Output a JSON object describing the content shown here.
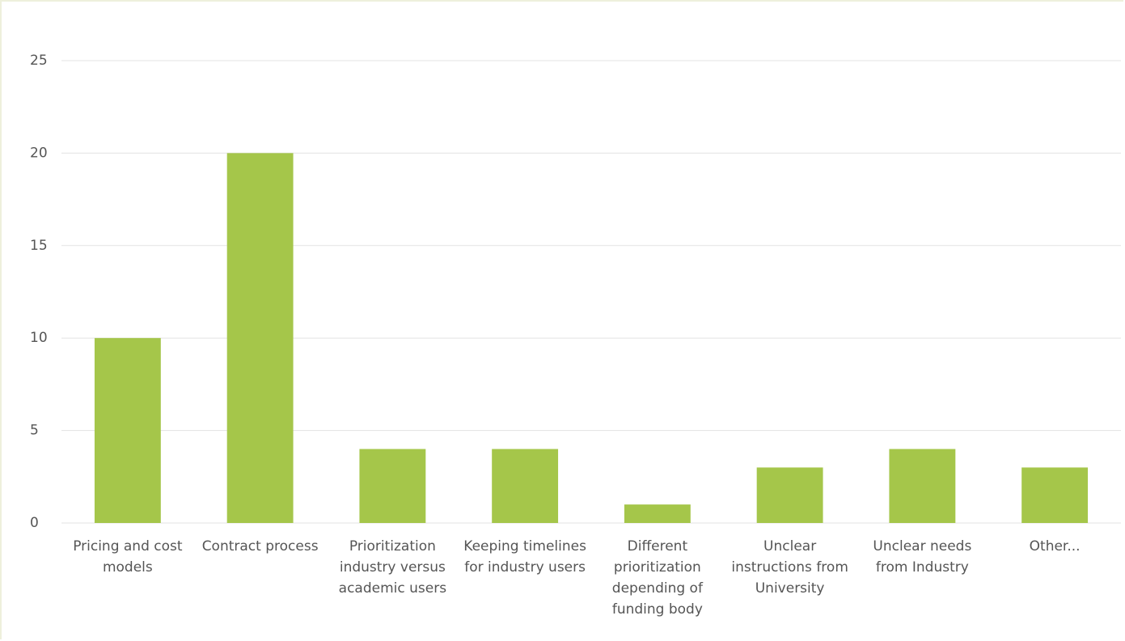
{
  "chart_data": {
    "type": "bar",
    "categories": [
      "Pricing and cost models",
      "Contract process",
      "Prioritization industry versus academic users",
      "Keeping timelines for industry users",
      "Different prioritization depending of funding body",
      "Unclear instructions from University",
      "Unclear needs from Industry",
      "Other..."
    ],
    "values": [
      10,
      20,
      4,
      4,
      1,
      3,
      4,
      3
    ],
    "color": "#a5c64a",
    "ylim": [
      0,
      25
    ],
    "yticks": [
      0,
      5,
      10,
      15,
      20,
      25
    ],
    "grid": true
  }
}
